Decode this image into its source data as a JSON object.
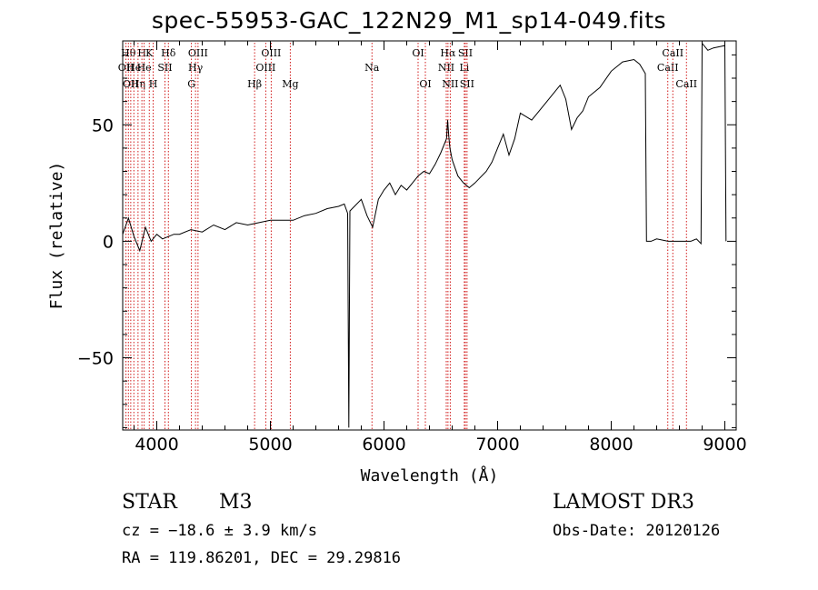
{
  "chart_data": {
    "type": "line",
    "title": "spec-55953-GAC_122N29_M1_sp14-049.fits",
    "xlabel": "Wavelength (Å)",
    "ylabel": "Flux (relative)",
    "xlim": [
      3700,
      9100
    ],
    "ylim": [
      -81,
      86
    ],
    "xticks": [
      4000,
      5000,
      6000,
      7000,
      8000,
      9000
    ],
    "yticks": [
      -50,
      0,
      50
    ],
    "grid": false,
    "series": [
      {
        "name": "flux",
        "x": [
          3700,
          3750,
          3800,
          3850,
          3900,
          3950,
          4000,
          4050,
          4100,
          4150,
          4200,
          4300,
          4400,
          4500,
          4600,
          4700,
          4800,
          4900,
          5000,
          5100,
          5200,
          5300,
          5400,
          5500,
          5600,
          5650,
          5680,
          5690,
          5700,
          5720,
          5800,
          5850,
          5900,
          5950,
          6000,
          6050,
          6100,
          6150,
          6200,
          6250,
          6300,
          6350,
          6400,
          6450,
          6500,
          6550,
          6560,
          6570,
          6580,
          6600,
          6650,
          6700,
          6750,
          6800,
          6900,
          6950,
          7000,
          7050,
          7100,
          7150,
          7200,
          7300,
          7400,
          7500,
          7550,
          7600,
          7650,
          7700,
          7750,
          7800,
          7900,
          8000,
          8100,
          8200,
          8250,
          8300,
          8310,
          8330,
          8350,
          8400,
          8500,
          8600,
          8700,
          8750,
          8790,
          8800,
          8850,
          8900,
          9000,
          9010
        ],
        "y": [
          3,
          10,
          2,
          -4,
          6,
          0,
          3,
          1,
          2,
          3,
          3,
          5,
          4,
          7,
          5,
          8,
          7,
          8,
          9,
          9,
          9,
          11,
          12,
          14,
          15,
          16,
          12,
          -80,
          13,
          14,
          18,
          11,
          6,
          18,
          22,
          25,
          20,
          24,
          22,
          25,
          28,
          30,
          29,
          33,
          38,
          44,
          52,
          45,
          40,
          35,
          28,
          25,
          23,
          25,
          30,
          34,
          40,
          46,
          37,
          44,
          55,
          52,
          58,
          64,
          67,
          61,
          48,
          53,
          56,
          62,
          66,
          73,
          77,
          78,
          76,
          72,
          0,
          0,
          0,
          1,
          0,
          0,
          0,
          1,
          -1,
          85,
          82,
          83,
          84,
          0
        ],
        "style": "solid",
        "color": "#000000"
      }
    ],
    "line_markers": [
      {
        "wavelength": 3729,
        "label": "OII",
        "row": 2
      },
      {
        "wavelength": 3750,
        "label": "Hθ",
        "row": 1
      },
      {
        "wavelength": 3771,
        "label": "OII",
        "row": 3
      },
      {
        "wavelength": 3798,
        "label": "He",
        "row": 2
      },
      {
        "wavelength": 3835,
        "label": "Hη",
        "row": 3
      },
      {
        "wavelength": 3869,
        "label": "H",
        "row": 1
      },
      {
        "wavelength": 3889,
        "label": "He",
        "row": 2
      },
      {
        "wavelength": 3934,
        "label": "K",
        "row": 1
      },
      {
        "wavelength": 3968,
        "label": "H",
        "row": 3
      },
      {
        "wavelength": 4072,
        "label": "SII",
        "row": 2
      },
      {
        "wavelength": 4102,
        "label": "Hδ",
        "row": 1
      },
      {
        "wavelength": 4305,
        "label": "G",
        "row": 3
      },
      {
        "wavelength": 4341,
        "label": "Hγ",
        "row": 2
      },
      {
        "wavelength": 4363,
        "label": "OIII",
        "row": 1
      },
      {
        "wavelength": 4861,
        "label": "Hβ",
        "row": 3
      },
      {
        "wavelength": 4959,
        "label": "OIII",
        "row": 2
      },
      {
        "wavelength": 5007,
        "label": "OIII",
        "row": 1
      },
      {
        "wavelength": 5175,
        "label": "Mg",
        "row": 3
      },
      {
        "wavelength": 5894,
        "label": "Na",
        "row": 2
      },
      {
        "wavelength": 6300,
        "label": "OI",
        "row": 1
      },
      {
        "wavelength": 6364,
        "label": "OI",
        "row": 3
      },
      {
        "wavelength": 6548,
        "label": "NII",
        "row": 2
      },
      {
        "wavelength": 6563,
        "label": "Hα",
        "row": 1
      },
      {
        "wavelength": 6583,
        "label": "NII",
        "row": 3
      },
      {
        "wavelength": 6707,
        "label": "Li",
        "row": 2
      },
      {
        "wavelength": 6716,
        "label": "SII",
        "row": 1
      },
      {
        "wavelength": 6731,
        "label": "SII",
        "row": 3
      },
      {
        "wavelength": 8498,
        "label": "CaII",
        "row": 2
      },
      {
        "wavelength": 8542,
        "label": "CaII",
        "row": 1
      },
      {
        "wavelength": 8662,
        "label": "CaII",
        "row": 3
      }
    ]
  },
  "info": {
    "object_class": "STAR",
    "subclass": "M3",
    "redshift": "cz = −18.6 ± 3.9 km/s",
    "coords": "RA = 119.86201, DEC =  29.29816",
    "survey": "LAMOST DR3",
    "obs_date": "Obs-Date: 20120126"
  },
  "colors": {
    "line": "#000000",
    "marker": "#cc0000",
    "axis": "#000000",
    "background": "#ffffff"
  }
}
